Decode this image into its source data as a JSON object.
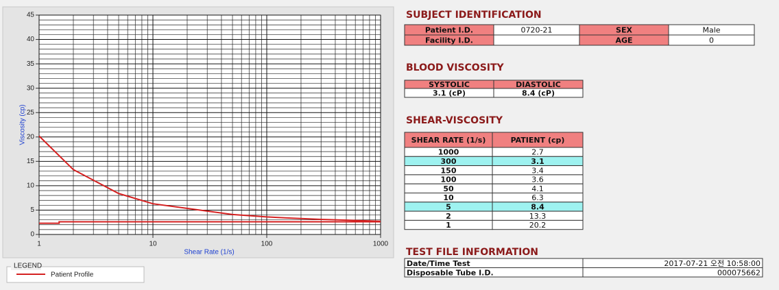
{
  "chart_data": {
    "type": "line",
    "x_label": "Shear Rate (1/s)",
    "y_label": "Viscosity (cp)",
    "xscale": "log",
    "xlim": [
      1,
      1000
    ],
    "xticks": [
      1,
      10,
      100,
      1000
    ],
    "ylim": [
      0,
      45
    ],
    "yticks": [
      0,
      5,
      10,
      15,
      20,
      25,
      30,
      35,
      40,
      45
    ],
    "grid": true,
    "legend_title": "LEGEND",
    "series": [
      {
        "name": "Patient Profile",
        "color": "#d42020",
        "x": [
          1,
          2,
          5,
          10,
          50,
          100,
          150,
          300,
          1000
        ],
        "values": [
          20.2,
          13.3,
          8.4,
          6.3,
          4.1,
          3.6,
          3.4,
          3.1,
          2.7
        ]
      },
      {
        "color": "#d42020",
        "x": [
          1,
          1.5,
          1.5,
          1000
        ],
        "values": [
          2.3,
          2.3,
          2.6,
          2.6
        ]
      }
    ]
  },
  "subject": {
    "title": "SUBJECT IDENTIFICATION",
    "rows": [
      [
        "Patient I.D.",
        "0720-21",
        "SEX",
        "Male"
      ],
      [
        "Facility I.D.",
        null,
        "AGE",
        "0"
      ]
    ]
  },
  "blood_viscosity": {
    "title": "BLOOD VISCOSITY",
    "headers": [
      "SYSTOLIC",
      "DIASTOLIC"
    ],
    "values": [
      "3.1 (cP)",
      "8.4 (cP)"
    ]
  },
  "shear_viscosity": {
    "title": "SHEAR-VISCOSITY",
    "headers": [
      "SHEAR RATE (1/s)",
      "PATIENT (cp)"
    ],
    "highlight_color": "#9ef2f0",
    "highlight_rows": [
      1,
      6
    ],
    "rows": [
      [
        "1000",
        "2.7"
      ],
      [
        "300",
        "3.1"
      ],
      [
        "150",
        "3.4"
      ],
      [
        "100",
        "3.6"
      ],
      [
        "50",
        "4.1"
      ],
      [
        "10",
        "6.3"
      ],
      [
        "5",
        "8.4"
      ],
      [
        "2",
        "13.3"
      ],
      [
        "1",
        "20.2"
      ]
    ]
  },
  "test_file": {
    "title": "TEST FILE INFORMATION",
    "rows": [
      [
        "Date/Time Test",
        "2017-07-21  오전 10:58:00"
      ],
      [
        "Disposable Tube I.D.",
        "000075662"
      ]
    ]
  }
}
